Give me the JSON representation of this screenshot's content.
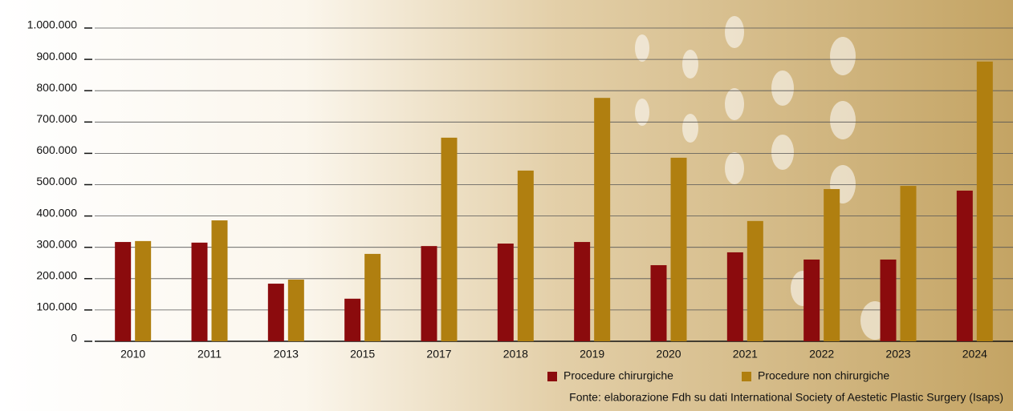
{
  "chart_data": {
    "type": "bar",
    "categories": [
      "2010",
      "2011",
      "2013",
      "2015",
      "2017",
      "2018",
      "2019",
      "2020",
      "2021",
      "2022",
      "2023",
      "2024"
    ],
    "series": [
      {
        "name": "Procedure chirurgiche",
        "color": "#8b0b0d",
        "values": [
          317000,
          315000,
          184000,
          136000,
          304000,
          312000,
          317000,
          243000,
          284000,
          261000,
          261000,
          481000
        ]
      },
      {
        "name": "Procedure non chirurgiche",
        "color": "#b07f10",
        "values": [
          320000,
          386000,
          197000,
          279000,
          650000,
          545000,
          777000,
          586000,
          384000,
          486000,
          496000,
          893000
        ]
      }
    ],
    "ylim": [
      0,
      1000000
    ],
    "yticks": [
      0,
      {
        "value": 100000,
        "label": "100.000"
      },
      {
        "value": 200000,
        "label": "200.000"
      },
      {
        "value": 300000,
        "label": "300.000"
      },
      {
        "value": 400000,
        "label": "400.000"
      },
      {
        "value": 500000,
        "label": "500.000"
      },
      {
        "value": 600000,
        "label": "600.000"
      },
      {
        "value": 700000,
        "label": "700.000"
      },
      {
        "value": 800000,
        "label": "800.000"
      },
      {
        "value": 900000,
        "label": "900.000"
      },
      {
        "value": 1000000,
        "label": "1.000.000"
      }
    ],
    "grid": true,
    "source": "Fonte: elaborazione Fdh su dati International Society of Aestetic Plastic Surgery (Isaps)"
  }
}
